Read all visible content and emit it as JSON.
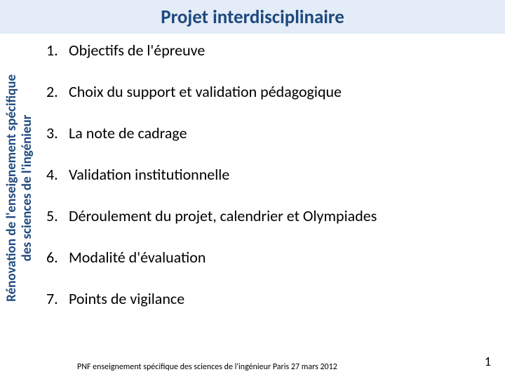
{
  "header": {
    "title": "Projet interdisciplinaire",
    "background_color": "#e3ecf7",
    "text_color": "#1f497d",
    "font_size": 27
  },
  "sidebar": {
    "line1": "Rénovation de l'enseignement spécifique",
    "line2": "des sciences de l'ingénieur",
    "text_color": "#1f497d",
    "font_size": 19
  },
  "list": {
    "font_size": 22,
    "text_color": "#000000",
    "items": [
      {
        "num": "1.",
        "text": "Objectifs de l'épreuve"
      },
      {
        "num": "2.",
        "text": "Choix du support et validation pédagogique"
      },
      {
        "num": "3.",
        "text": "La note de cadrage"
      },
      {
        "num": "4.",
        "text": "Validation institutionnelle"
      },
      {
        "num": "5.",
        "text": "Déroulement du projet, calendrier et Olympiades"
      },
      {
        "num": "6.",
        "text": "Modalité d'évaluation"
      },
      {
        "num": "7.",
        "text": "Points de vigilance"
      }
    ]
  },
  "footer": {
    "text": "PNF enseignement spécifique des sciences de l'ingénieur        Paris  27 mars 2012",
    "font_size": 12,
    "text_color": "#000000",
    "page_number": "1",
    "page_number_font_size": 18
  }
}
